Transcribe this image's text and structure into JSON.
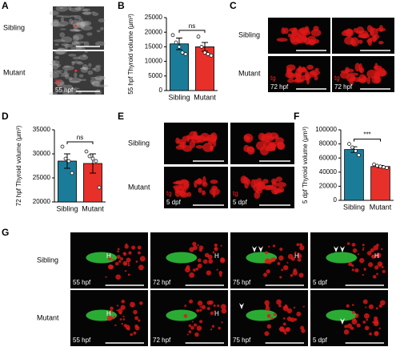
{
  "panels": {
    "A": {
      "letter": "A",
      "rows": [
        "Sibling",
        "Mutant"
      ],
      "stain": "tg",
      "stage": "55 hpf"
    },
    "C": {
      "letter": "C",
      "rows": [
        "Sibling",
        "Mutant"
      ],
      "stain": "tg",
      "stage": "72 hpf"
    },
    "E": {
      "letter": "E",
      "rows": [
        "Sibling",
        "Mutant"
      ],
      "stain": "tg",
      "stage": "5 dpf"
    },
    "G": {
      "letter": "G",
      "rows": [
        "Sibling",
        "Mutant"
      ],
      "stages": [
        "55 hpf",
        "72 hpf",
        "75 hpf",
        "5 dpf"
      ],
      "marker": "H"
    }
  },
  "chart_data": [
    {
      "type": "bar",
      "letter": "B",
      "ylabel": "55 hpf Thyroid volume (μm³)",
      "categories": [
        "Sibling",
        "Mutant"
      ],
      "values": [
        16000,
        15000
      ],
      "errors": [
        2000,
        1500
      ],
      "points": [
        [
          19000,
          16500,
          15000,
          13000,
          12500
        ],
        [
          18500,
          15000,
          13000,
          12500,
          12000
        ]
      ],
      "colors": [
        "#1b7c99",
        "#e8302a"
      ],
      "ylim": [
        0,
        25000
      ],
      "yticks": [
        0,
        5000,
        10000,
        15000,
        20000,
        25000
      ],
      "annotation": "ns"
    },
    {
      "type": "bar",
      "letter": "D",
      "ylabel": "72 hpf Thyroid volume (μm³)",
      "categories": [
        "Sibling",
        "Mutant"
      ],
      "values": [
        28500,
        28000
      ],
      "errors": [
        1500,
        2000
      ],
      "points": [
        [
          31500,
          29000,
          28500,
          26000
        ],
        [
          30500,
          29500,
          29000,
          28500,
          23000
        ]
      ],
      "colors": [
        "#1b7c99",
        "#e8302a"
      ],
      "ylim": [
        20000,
        35000
      ],
      "yticks": [
        20000,
        25000,
        30000,
        35000
      ],
      "annotation": "ns"
    },
    {
      "type": "bar",
      "letter": "F",
      "ylabel": "5 dpf Thyroid volume (μm³)",
      "categories": [
        "Sibling",
        "Mutant"
      ],
      "values": [
        72000,
        48000
      ],
      "errors": [
        4000,
        1500
      ],
      "points": [
        [
          80000,
          75000,
          70000,
          64000
        ],
        [
          51000,
          49000,
          48000,
          47000,
          46000
        ]
      ],
      "colors": [
        "#1b7c99",
        "#e8302a"
      ],
      "ylim": [
        0,
        100000
      ],
      "yticks": [
        0,
        20000,
        40000,
        60000,
        80000,
        100000
      ],
      "annotation": "***"
    }
  ]
}
